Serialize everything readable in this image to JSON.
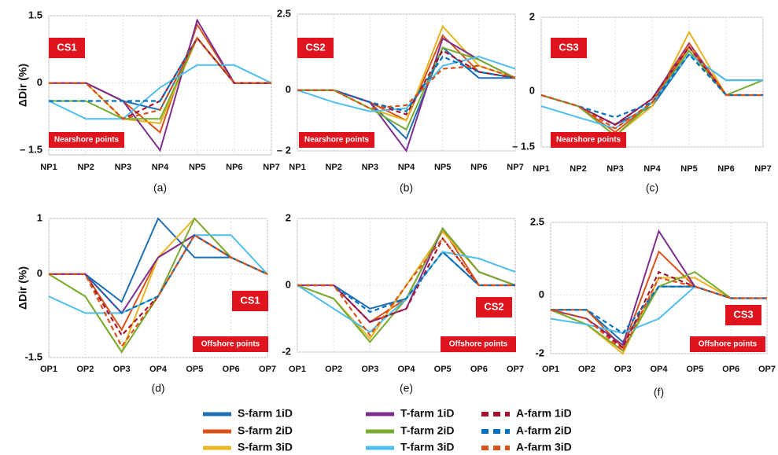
{
  "chart_data": [
    {
      "type": "line",
      "subtitle": "(a)",
      "y_label": "ΔDir (%)",
      "panel_label": "CS1",
      "note": "Nearshore points",
      "grid": true,
      "categories": [
        "NP1",
        "NP2",
        "NP3",
        "NP4",
        "NP5",
        "NP6",
        "NP7"
      ],
      "ylim": [
        -1.6,
        1.5
      ],
      "yticks": [
        1.5,
        0,
        {
          "value": -1.5,
          "label": "– 1.5"
        }
      ],
      "series": [
        {
          "name": "S-farm 1iD",
          "color": "#1f6fb5",
          "dash": false,
          "values": [
            0,
            0,
            -0.4,
            -0.6,
            1.0,
            0,
            0
          ]
        },
        {
          "name": "S-farm 2iD",
          "color": "#d9541a",
          "dash": false,
          "values": [
            0,
            0,
            -0.4,
            -1.1,
            1.3,
            0,
            0
          ]
        },
        {
          "name": "S-farm 3iD",
          "color": "#e8b420",
          "dash": false,
          "values": [
            0,
            0,
            -0.8,
            -0.9,
            1.0,
            0,
            0
          ]
        },
        {
          "name": "T-farm 1iD",
          "color": "#7e2f8e",
          "dash": false,
          "values": [
            0,
            0,
            -0.4,
            -1.5,
            1.4,
            0,
            0
          ]
        },
        {
          "name": "T-farm 2iD",
          "color": "#77ac30",
          "dash": false,
          "values": [
            -0.4,
            -0.4,
            -0.8,
            -0.8,
            1.0,
            0,
            0
          ]
        },
        {
          "name": "T-farm 3iD",
          "color": "#4dbeee",
          "dash": false,
          "values": [
            -0.4,
            -0.8,
            -0.8,
            -0.1,
            0.4,
            0.4,
            0
          ]
        },
        {
          "name": "A-farm 1iD",
          "color": "#a2142f",
          "dash": true,
          "values": [
            0,
            0,
            -0.8,
            -0.4,
            1.0,
            0,
            0
          ]
        },
        {
          "name": "A-farm 2iD",
          "color": "#0072bd",
          "dash": true,
          "values": [
            -0.4,
            -0.4,
            -0.4,
            -0.4,
            1.0,
            0,
            0
          ]
        },
        {
          "name": "A-farm 3iD",
          "color": "#d95319",
          "dash": true,
          "values": [
            0,
            0,
            -0.8,
            -0.6,
            1.0,
            0,
            0
          ]
        }
      ]
    },
    {
      "type": "line",
      "subtitle": "(b)",
      "panel_label": "CS2",
      "note": "Nearshore points",
      "grid": true,
      "categories": [
        "NP1",
        "NP2",
        "NP3",
        "NP4",
        "NP5",
        "NP6",
        "NP7"
      ],
      "ylim": [
        -2,
        2.5
      ],
      "yticks": [
        2.5,
        0,
        {
          "value": -2,
          "label": "– 2"
        }
      ],
      "series": [
        {
          "name": "S-farm 1iD",
          "color": "#1f6fb5",
          "dash": false,
          "values": [
            0,
            0,
            -0.4,
            -1.6,
            1.4,
            0.4,
            0.4
          ]
        },
        {
          "name": "S-farm 2iD",
          "color": "#d9541a",
          "dash": false,
          "values": [
            0,
            0,
            -0.4,
            -1.0,
            1.8,
            0.6,
            0.4
          ]
        },
        {
          "name": "S-farm 3iD",
          "color": "#e8b420",
          "dash": false,
          "values": [
            0,
            0,
            -0.6,
            -1.0,
            2.1,
            0.8,
            0.4
          ]
        },
        {
          "name": "T-farm 1iD",
          "color": "#7e2f8e",
          "dash": false,
          "values": [
            0,
            0,
            -0.4,
            -2.0,
            1.7,
            1.0,
            0.4
          ]
        },
        {
          "name": "T-farm 2iD",
          "color": "#77ac30",
          "dash": false,
          "values": [
            0,
            0,
            -0.6,
            -1.3,
            1.4,
            1.0,
            0.4
          ]
        },
        {
          "name": "T-farm 3iD",
          "color": "#4dbeee",
          "dash": false,
          "values": [
            0,
            -0.4,
            -0.7,
            -0.6,
            0.8,
            1.1,
            0.7
          ]
        },
        {
          "name": "A-farm 1iD",
          "color": "#a2142f",
          "dash": true,
          "values": [
            0,
            0,
            -0.4,
            -0.8,
            1.3,
            0.6,
            0.4
          ]
        },
        {
          "name": "A-farm 2iD",
          "color": "#0072bd",
          "dash": true,
          "values": [
            0,
            0,
            -0.4,
            -0.7,
            1.1,
            0.6,
            0.4
          ]
        },
        {
          "name": "A-farm 3iD",
          "color": "#d95319",
          "dash": true,
          "values": [
            0,
            0,
            -0.6,
            -0.5,
            0.7,
            0.8,
            0.4
          ]
        }
      ]
    },
    {
      "type": "line",
      "subtitle": "(c)",
      "panel_label": "CS3",
      "note": "Nearshore points",
      "grid": true,
      "categories": [
        "NP1",
        "NP2",
        "NP3",
        "NP4",
        "NP5",
        "NP6",
        "NP7"
      ],
      "ylim": [
        -1.5,
        2
      ],
      "yticks": [
        2,
        0,
        {
          "value": -1.5,
          "label": "– 1.5"
        }
      ],
      "series": [
        {
          "name": "S-farm 1iD",
          "color": "#1f6fb5",
          "dash": false,
          "values": [
            -0.1,
            -0.4,
            -0.9,
            -0.4,
            1.0,
            0.3,
            0.3
          ]
        },
        {
          "name": "S-farm 2iD",
          "color": "#d9541a",
          "dash": false,
          "values": [
            -0.1,
            -0.4,
            -1.1,
            -0.3,
            1.2,
            -0.1,
            -0.1
          ]
        },
        {
          "name": "S-farm 3iD",
          "color": "#e8b420",
          "dash": false,
          "values": [
            -0.1,
            -0.4,
            -1.2,
            -0.4,
            1.6,
            -0.1,
            -0.1
          ]
        },
        {
          "name": "T-farm 1iD",
          "color": "#7e2f8e",
          "dash": false,
          "values": [
            -0.1,
            -0.4,
            -0.9,
            -0.2,
            1.3,
            -0.1,
            -0.1
          ]
        },
        {
          "name": "T-farm 2iD",
          "color": "#77ac30",
          "dash": false,
          "values": [
            -0.1,
            -0.4,
            -1.2,
            -0.3,
            1.1,
            -0.1,
            0.3
          ]
        },
        {
          "name": "T-farm 3iD",
          "color": "#4dbeee",
          "dash": false,
          "values": [
            -0.4,
            -0.7,
            -1.0,
            -0.3,
            1.0,
            0.3,
            0.3
          ]
        },
        {
          "name": "A-farm 1iD",
          "color": "#a2142f",
          "dash": true,
          "values": [
            -0.1,
            -0.4,
            -0.9,
            -0.2,
            1.2,
            -0.1,
            -0.1
          ]
        },
        {
          "name": "A-farm 2iD",
          "color": "#0072bd",
          "dash": true,
          "values": [
            -0.1,
            -0.4,
            -0.7,
            -0.3,
            1.0,
            -0.1,
            -0.1
          ]
        },
        {
          "name": "A-farm 3iD",
          "color": "#d95319",
          "dash": true,
          "values": [
            -0.1,
            -0.4,
            -1.0,
            -0.3,
            1.3,
            -0.1,
            -0.1
          ]
        }
      ]
    },
    {
      "type": "line",
      "subtitle": "(d)",
      "y_label": "ΔDir (%)",
      "panel_label": "CS1",
      "note": "Offshore points",
      "grid": true,
      "categories": [
        "OP1",
        "OP2",
        "OP3",
        "OP4",
        "OP5",
        "OP6",
        "OP7"
      ],
      "ylim": [
        -1.5,
        1
      ],
      "yticks": [
        1,
        0,
        {
          "value": -1.5,
          "label": "-1.5"
        }
      ],
      "series": [
        {
          "name": "S-farm 1iD",
          "color": "#1f6fb5",
          "dash": false,
          "values": [
            0,
            0,
            -0.5,
            1.0,
            0.3,
            0.3,
            0
          ]
        },
        {
          "name": "S-farm 2iD",
          "color": "#d9541a",
          "dash": false,
          "values": [
            0,
            0,
            -1.0,
            0.3,
            0.7,
            0.3,
            0
          ]
        },
        {
          "name": "S-farm 3iD",
          "color": "#e8b420",
          "dash": false,
          "values": [
            0,
            -0.4,
            -1.4,
            0.3,
            1.0,
            0.3,
            0
          ]
        },
        {
          "name": "T-farm 1iD",
          "color": "#7e2f8e",
          "dash": false,
          "values": [
            0,
            0,
            -0.7,
            0.3,
            0.7,
            0.3,
            0
          ]
        },
        {
          "name": "T-farm 2iD",
          "color": "#77ac30",
          "dash": false,
          "values": [
            0,
            -0.4,
            -1.4,
            -0.4,
            1.0,
            0.3,
            0
          ]
        },
        {
          "name": "T-farm 3iD",
          "color": "#4dbeee",
          "dash": false,
          "values": [
            -0.4,
            -0.7,
            -0.7,
            -0.4,
            0.7,
            0.7,
            0
          ]
        },
        {
          "name": "A-farm 1iD",
          "color": "#a2142f",
          "dash": true,
          "values": [
            0,
            0,
            -1.1,
            -0.4,
            0.7,
            0.3,
            0
          ]
        },
        {
          "name": "A-farm 2iD",
          "color": "#0072bd",
          "dash": true,
          "values": [
            0,
            0,
            -0.7,
            -0.4,
            0.7,
            0.3,
            0
          ]
        },
        {
          "name": "A-farm 3iD",
          "color": "#d95319",
          "dash": true,
          "values": [
            0,
            0,
            -1.3,
            -0.4,
            0.7,
            0.3,
            0
          ]
        }
      ]
    },
    {
      "type": "line",
      "subtitle": "(e)",
      "panel_label": "CS2",
      "note": "Offshore points",
      "grid": true,
      "categories": [
        "OP1",
        "OP2",
        "OP3",
        "OP4",
        "OP5",
        "OP6",
        "OP7"
      ],
      "ylim": [
        -2,
        2
      ],
      "yticks": [
        2,
        0,
        {
          "value": -2,
          "label": "-2"
        }
      ],
      "series": [
        {
          "name": "S-farm 1iD",
          "color": "#1f6fb5",
          "dash": false,
          "values": [
            0,
            0,
            -0.7,
            -0.4,
            1.0,
            0,
            0
          ]
        },
        {
          "name": "S-farm 2iD",
          "color": "#d9541a",
          "dash": false,
          "values": [
            0,
            0,
            -1.1,
            -0.4,
            1.7,
            0,
            0
          ]
        },
        {
          "name": "S-farm 3iD",
          "color": "#e8b420",
          "dash": false,
          "values": [
            0,
            -0.4,
            -1.6,
            0,
            1.6,
            0.4,
            0
          ]
        },
        {
          "name": "T-farm 1iD",
          "color": "#7e2f8e",
          "dash": false,
          "values": [
            0,
            0,
            -1.1,
            -0.7,
            1.7,
            0.4,
            0
          ]
        },
        {
          "name": "T-farm 2iD",
          "color": "#77ac30",
          "dash": false,
          "values": [
            0,
            -0.4,
            -1.7,
            -0.4,
            1.7,
            0.4,
            0
          ]
        },
        {
          "name": "T-farm 3iD",
          "color": "#4dbeee",
          "dash": false,
          "values": [
            0,
            -0.7,
            -1.4,
            -0.4,
            1.0,
            0.8,
            0.4
          ]
        },
        {
          "name": "A-farm 1iD",
          "color": "#a2142f",
          "dash": true,
          "values": [
            0,
            0,
            -1.1,
            -0.7,
            1.4,
            0,
            0
          ]
        },
        {
          "name": "A-farm 2iD",
          "color": "#0072bd",
          "dash": true,
          "values": [
            0,
            0,
            -0.8,
            -0.4,
            1.0,
            0,
            0
          ]
        },
        {
          "name": "A-farm 3iD",
          "color": "#d95319",
          "dash": true,
          "values": [
            0,
            0,
            -1.5,
            0,
            1.4,
            0,
            0
          ]
        }
      ]
    },
    {
      "type": "line",
      "subtitle": "(f)",
      "panel_label": "CS3",
      "note": "Offshore points",
      "grid": true,
      "categories": [
        "OP1",
        "OP2",
        "OP3",
        "OP4",
        "OP5",
        "OP6",
        "OP7"
      ],
      "ylim": [
        -2,
        2.5
      ],
      "yticks": [
        2.5,
        0,
        {
          "value": -2,
          "label": "-2"
        }
      ],
      "series": [
        {
          "name": "S-farm 1iD",
          "color": "#1f6fb5",
          "dash": false,
          "values": [
            -0.5,
            -0.5,
            -1.6,
            0.3,
            0.3,
            -0.1,
            -0.1
          ]
        },
        {
          "name": "S-farm 2iD",
          "color": "#d9541a",
          "dash": false,
          "values": [
            -0.5,
            -0.5,
            -1.8,
            1.5,
            0.3,
            -0.1,
            -0.1
          ]
        },
        {
          "name": "S-farm 3iD",
          "color": "#e8b420",
          "dash": false,
          "values": [
            -0.5,
            -1.0,
            -2.0,
            0.6,
            0.6,
            -0.1,
            -0.1
          ]
        },
        {
          "name": "T-farm 1iD",
          "color": "#7e2f8e",
          "dash": false,
          "values": [
            -0.5,
            -0.8,
            -1.7,
            2.2,
            0.3,
            -0.1,
            -0.1
          ]
        },
        {
          "name": "T-farm 2iD",
          "color": "#77ac30",
          "dash": false,
          "values": [
            -0.5,
            -1.0,
            -1.9,
            0.3,
            0.8,
            -0.1,
            -0.1
          ]
        },
        {
          "name": "T-farm 3iD",
          "color": "#4dbeee",
          "dash": false,
          "values": [
            -0.8,
            -1.0,
            -1.3,
            -0.8,
            0.3,
            -0.1,
            -0.1
          ]
        },
        {
          "name": "A-farm 1iD",
          "color": "#a2142f",
          "dash": true,
          "values": [
            -0.5,
            -0.8,
            -1.8,
            0.8,
            0.3,
            -0.1,
            -0.1
          ]
        },
        {
          "name": "A-farm 2iD",
          "color": "#0072bd",
          "dash": true,
          "values": [
            -0.5,
            -0.5,
            -1.3,
            0.3,
            0.3,
            -0.1,
            -0.1
          ]
        },
        {
          "name": "A-farm 3iD",
          "color": "#d95319",
          "dash": true,
          "values": [
            -0.5,
            -0.8,
            -1.9,
            0.6,
            0.3,
            -0.1,
            -0.1
          ]
        }
      ]
    }
  ]
}
